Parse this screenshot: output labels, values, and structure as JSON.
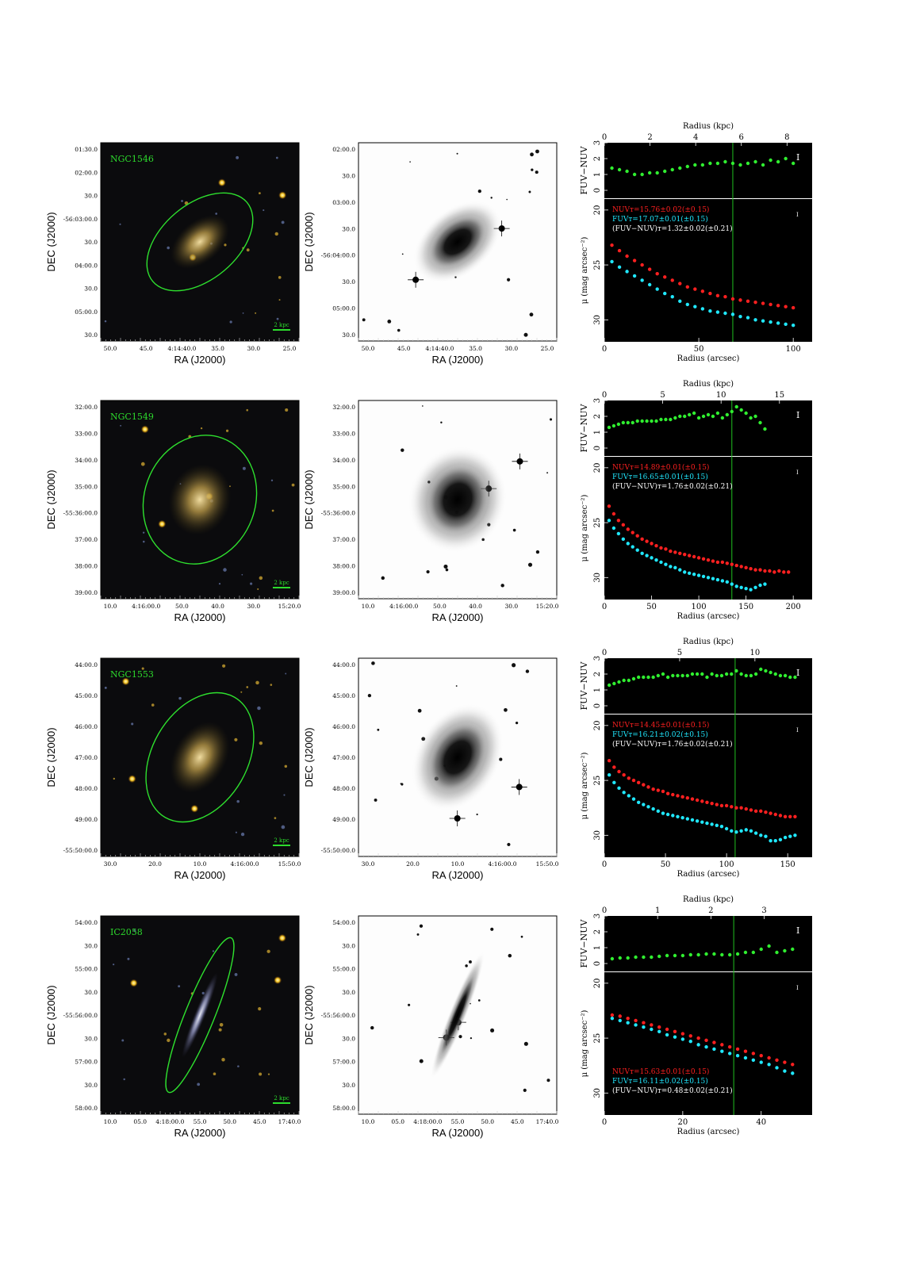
{
  "axis_text": {
    "ra_label": "RA (J2000)",
    "dec_label": "DEC (J2000)",
    "radius_kpc_label": "Radius (kpc)",
    "radius_arcsec_label": "Radius (arcsec)",
    "color_label": "FUV−NUV",
    "mu_label": "μ (mag arcsec⁻²)",
    "scalebar_label": "2 kpc"
  },
  "colors": {
    "nuv": "#ff2020",
    "fuv": "#20e8ff",
    "color": "#30ee30",
    "text_green": "#2ddc2d"
  },
  "rows": [
    {
      "name": "NGC1546",
      "ra_ticks": [
        "50.0",
        "45.0",
        "4:14:40.0",
        "35.0",
        "30.0",
        "25.0"
      ],
      "dec_ticks": [
        "01:30.0",
        "02:00.0",
        "30.0",
        "-56:03:00.0",
        "30.0",
        "04:00.0",
        "30.0",
        "05:00.0",
        "30.0"
      ],
      "gray_dec_ticks": [
        "02:00.0",
        "30.0",
        "03:00.0",
        "30.0",
        "-56:04:00.0",
        "30.0",
        "05:00.0",
        "30.0"
      ],
      "ellipse": {
        "major": 0.31,
        "minor": 0.19,
        "angle": 40
      },
      "legend": [
        "NUVᴛ=15.76±0.02(±0.15)",
        "FUVᴛ=17.07±0.01(±0.15)",
        "(FUV−NUV)ᴛ=1.32±0.02(±0.21)"
      ],
      "chart_data": {
        "type": "scatter",
        "x_arcsec_range": [
          0,
          110
        ],
        "x_arcsec_ticks": [
          0,
          50,
          100
        ],
        "kpc_ticks": [
          0,
          2,
          4,
          6,
          8
        ],
        "kpc_max": 9.1,
        "color_ylim": [
          -0.5,
          3
        ],
        "mu_ylim": [
          19,
          32
        ],
        "vline": 68,
        "nuv": {
          "x": [
            4,
            8,
            12,
            16,
            20,
            24,
            28,
            32,
            36,
            40,
            44,
            48,
            52,
            56,
            60,
            64,
            68,
            72,
            76,
            80,
            84,
            88,
            92,
            96,
            100
          ],
          "y": [
            23.2,
            23.7,
            24.2,
            24.6,
            25.0,
            25.4,
            25.8,
            26.1,
            26.4,
            26.7,
            27.0,
            27.2,
            27.4,
            27.6,
            27.8,
            27.9,
            28.1,
            28.2,
            28.3,
            28.4,
            28.5,
            28.6,
            28.7,
            28.8,
            28.9
          ]
        },
        "fuv": {
          "x": [
            4,
            8,
            12,
            16,
            20,
            24,
            28,
            32,
            36,
            40,
            44,
            48,
            52,
            56,
            60,
            64,
            68,
            72,
            76,
            80,
            84,
            88,
            92,
            96,
            100
          ],
          "y": [
            24.7,
            25.2,
            25.6,
            26.0,
            26.4,
            26.8,
            27.2,
            27.6,
            27.9,
            28.3,
            28.6,
            28.8,
            29.0,
            29.2,
            29.3,
            29.4,
            29.5,
            29.7,
            29.8,
            30.0,
            30.1,
            30.2,
            30.3,
            30.4,
            30.5
          ]
        },
        "fuv_nuv": {
          "x": [
            4,
            8,
            12,
            16,
            20,
            24,
            28,
            32,
            36,
            40,
            44,
            48,
            52,
            56,
            60,
            64,
            68,
            72,
            76,
            80,
            84,
            88,
            92,
            96,
            100
          ],
          "y": [
            1.4,
            1.3,
            1.2,
            1.0,
            1.0,
            1.1,
            1.1,
            1.2,
            1.3,
            1.4,
            1.5,
            1.6,
            1.6,
            1.7,
            1.7,
            1.8,
            1.7,
            1.6,
            1.7,
            1.8,
            1.6,
            1.9,
            1.8,
            2.0,
            1.7
          ]
        }
      }
    },
    {
      "name": "NGC1549",
      "ra_ticks": [
        "10.0",
        "4:16:00.0",
        "50.0",
        "40.0",
        "30.0",
        "15:20.0"
      ],
      "dec_ticks": [
        "32:00.0",
        "33:00.0",
        "34:00.0",
        "35:00.0",
        "-55:36:00.0",
        "37:00.0",
        "38:00.0",
        "39:00.0"
      ],
      "gray_dec_ticks": [
        "32:00.0",
        "33:00.0",
        "34:00.0",
        "35:00.0",
        "-55:36:00.0",
        "37:00.0",
        "38:00.0",
        "39:00.0"
      ],
      "ellipse": {
        "major": 0.33,
        "minor": 0.28,
        "angle": 70
      },
      "legend": [
        "NUVᴛ=14.89±0.01(±0.15)",
        "FUVᴛ=16.65±0.01(±0.15)",
        "(FUV−NUV)ᴛ=1.76±0.02(±0.21)"
      ],
      "chart_data": {
        "type": "scatter",
        "x_arcsec_range": [
          0,
          220
        ],
        "x_arcsec_ticks": [
          0,
          50,
          100,
          150,
          200
        ],
        "kpc_ticks": [
          0,
          5,
          10,
          15
        ],
        "kpc_max": 17.8,
        "color_ylim": [
          -0.5,
          3
        ],
        "mu_ylim": [
          19,
          32
        ],
        "vline": 135,
        "nuv": {
          "x": [
            5,
            10,
            15,
            20,
            25,
            30,
            35,
            40,
            45,
            50,
            55,
            60,
            65,
            70,
            75,
            80,
            85,
            90,
            95,
            100,
            105,
            110,
            115,
            120,
            125,
            130,
            135,
            140,
            145,
            150,
            155,
            160,
            165,
            170,
            175,
            180,
            185,
            190,
            195
          ],
          "y": [
            23.5,
            24.2,
            24.8,
            25.2,
            25.6,
            25.9,
            26.2,
            26.5,
            26.7,
            26.9,
            27.1,
            27.3,
            27.4,
            27.6,
            27.7,
            27.8,
            27.9,
            28.0,
            28.1,
            28.2,
            28.3,
            28.4,
            28.5,
            28.6,
            28.6,
            28.7,
            28.8,
            28.9,
            29.0,
            29.1,
            29.2,
            29.3,
            29.3,
            29.4,
            29.4,
            29.5,
            29.4,
            29.5,
            29.5
          ]
        },
        "fuv": {
          "x": [
            5,
            10,
            15,
            20,
            25,
            30,
            35,
            40,
            45,
            50,
            55,
            60,
            65,
            70,
            75,
            80,
            85,
            90,
            95,
            100,
            105,
            110,
            115,
            120,
            125,
            130,
            135,
            140,
            145,
            150,
            155,
            160,
            165,
            170
          ],
          "y": [
            24.8,
            25.5,
            26.0,
            26.5,
            26.9,
            27.2,
            27.5,
            27.8,
            28.0,
            28.2,
            28.4,
            28.6,
            28.8,
            29.0,
            29.1,
            29.3,
            29.5,
            29.6,
            29.7,
            29.8,
            29.9,
            30.0,
            30.1,
            30.2,
            30.3,
            30.4,
            30.6,
            30.8,
            30.9,
            31.0,
            31.1,
            30.9,
            30.7,
            30.6
          ]
        },
        "fuv_nuv": {
          "x": [
            5,
            10,
            15,
            20,
            25,
            30,
            35,
            40,
            45,
            50,
            55,
            60,
            65,
            70,
            75,
            80,
            85,
            90,
            95,
            100,
            105,
            110,
            115,
            120,
            125,
            130,
            135,
            140,
            145,
            150,
            155,
            160,
            165,
            170
          ],
          "y": [
            1.3,
            1.4,
            1.5,
            1.6,
            1.6,
            1.6,
            1.7,
            1.7,
            1.7,
            1.7,
            1.7,
            1.8,
            1.8,
            1.8,
            1.9,
            2.0,
            2.0,
            2.1,
            2.2,
            1.9,
            2.0,
            2.1,
            2.0,
            2.2,
            1.9,
            2.1,
            2.3,
            2.6,
            2.4,
            2.2,
            1.9,
            2.0,
            1.6,
            1.2
          ]
        }
      }
    },
    {
      "name": "NGC1553",
      "ra_ticks": [
        "30.0",
        "20.0",
        "10.0",
        "4:16:00.0",
        "15:50.0"
      ],
      "dec_ticks": [
        "44:00.0",
        "45:00.0",
        "46:00.0",
        "47:00.0",
        "48:00.0",
        "49:00.0",
        "-55:50:00.0"
      ],
      "gray_dec_ticks": [
        "44:00.0",
        "45:00.0",
        "46:00.0",
        "47:00.0",
        "48:00.0",
        "49:00.0",
        "-55:50:00.0"
      ],
      "ellipse": {
        "major": 0.35,
        "minor": 0.24,
        "angle": 60
      },
      "legend": [
        "NUVᴛ=14.45±0.01(±0.15)",
        "FUVᴛ=16.21±0.02(±0.15)",
        "(FUV−NUV)ᴛ=1.76±0.02(±0.21)"
      ],
      "chart_data": {
        "type": "scatter",
        "x_arcsec_range": [
          0,
          170
        ],
        "x_arcsec_ticks": [
          0,
          50,
          100,
          150
        ],
        "kpc_ticks": [
          0,
          5,
          10
        ],
        "kpc_max": 13.8,
        "color_ylim": [
          -0.5,
          3
        ],
        "mu_ylim": [
          19,
          32
        ],
        "vline": 107,
        "nuv": {
          "x": [
            4,
            8,
            12,
            16,
            20,
            24,
            28,
            32,
            36,
            40,
            44,
            48,
            52,
            56,
            60,
            64,
            68,
            72,
            76,
            80,
            84,
            88,
            92,
            96,
            100,
            104,
            108,
            112,
            116,
            120,
            124,
            128,
            132,
            136,
            140,
            144,
            148,
            152,
            156
          ],
          "y": [
            23.2,
            23.8,
            24.2,
            24.5,
            24.8,
            25.0,
            25.2,
            25.4,
            25.6,
            25.8,
            25.9,
            26.0,
            26.2,
            26.3,
            26.4,
            26.5,
            26.6,
            26.7,
            26.8,
            26.9,
            27.0,
            27.1,
            27.2,
            27.3,
            27.3,
            27.4,
            27.5,
            27.5,
            27.6,
            27.7,
            27.8,
            27.8,
            27.9,
            28.0,
            28.1,
            28.2,
            28.3,
            28.3,
            28.3
          ]
        },
        "fuv": {
          "x": [
            4,
            8,
            12,
            16,
            20,
            24,
            28,
            32,
            36,
            40,
            44,
            48,
            52,
            56,
            60,
            64,
            68,
            72,
            76,
            80,
            84,
            88,
            92,
            96,
            100,
            104,
            108,
            112,
            116,
            120,
            124,
            128,
            132,
            136,
            140,
            144,
            148,
            152,
            156
          ],
          "y": [
            24.5,
            25.2,
            25.7,
            26.1,
            26.4,
            26.7,
            27.0,
            27.2,
            27.4,
            27.6,
            27.8,
            28.0,
            28.1,
            28.2,
            28.3,
            28.4,
            28.5,
            28.6,
            28.7,
            28.8,
            28.9,
            29.0,
            29.1,
            29.2,
            29.4,
            29.6,
            29.7,
            29.6,
            29.5,
            29.6,
            29.8,
            30.0,
            30.1,
            30.5,
            30.5,
            30.4,
            30.2,
            30.1,
            30.0
          ]
        },
        "fuv_nuv": {
          "x": [
            4,
            8,
            12,
            16,
            20,
            24,
            28,
            32,
            36,
            40,
            44,
            48,
            52,
            56,
            60,
            64,
            68,
            72,
            76,
            80,
            84,
            88,
            92,
            96,
            100,
            104,
            108,
            112,
            116,
            120,
            124,
            128,
            132,
            136,
            140,
            144,
            148,
            152,
            156
          ],
          "y": [
            1.3,
            1.4,
            1.5,
            1.6,
            1.6,
            1.7,
            1.8,
            1.8,
            1.8,
            1.8,
            1.9,
            2.0,
            1.8,
            1.9,
            1.9,
            1.9,
            1.9,
            2.0,
            2.0,
            2.0,
            1.8,
            2.0,
            1.9,
            1.9,
            2.0,
            2.0,
            2.2,
            2.0,
            1.9,
            1.9,
            2.0,
            2.3,
            2.2,
            2.1,
            2.0,
            1.9,
            1.9,
            1.8,
            1.8
          ]
        }
      }
    },
    {
      "name": "IC2058",
      "ra_ticks": [
        "10.0",
        "05.0",
        "4:18:00.0",
        "55.0",
        "50.0",
        "45.0",
        "17:40.0"
      ],
      "dec_ticks": [
        "54:00.0",
        "30.0",
        "55:00.0",
        "30.0",
        "-55:56:00.0",
        "30.0",
        "57:00.0",
        "30.0",
        "58:00.0"
      ],
      "gray_dec_ticks": [
        "54:00.0",
        "30.0",
        "55:00.0",
        "30.0",
        "-55:56:00.0",
        "30.0",
        "57:00.0",
        "30.0",
        "58:00.0"
      ],
      "ellipse": {
        "major": 0.42,
        "minor": 0.05,
        "angle": 68
      },
      "legend": [
        "NUVᴛ=15.63±0.01(±0.15)",
        "FUVᴛ=16.11±0.02(±0.15)",
        "(FUV−NUV)ᴛ=0.48±0.02(±0.21)"
      ],
      "chart_data": {
        "type": "scatter",
        "x_arcsec_range": [
          0,
          53
        ],
        "x_arcsec_ticks": [
          0,
          20,
          40
        ],
        "kpc_ticks": [
          0,
          1,
          2,
          3
        ],
        "kpc_max": 3.9,
        "color_ylim": [
          -0.5,
          3
        ],
        "mu_ylim": [
          19,
          32
        ],
        "vline": 33,
        "nuv": {
          "x": [
            2,
            4,
            6,
            8,
            10,
            12,
            14,
            16,
            18,
            20,
            22,
            24,
            26,
            28,
            30,
            32,
            34,
            36,
            38,
            40,
            42,
            44,
            46,
            48
          ],
          "y": [
            22.9,
            23.0,
            23.2,
            23.4,
            23.6,
            23.8,
            24.0,
            24.2,
            24.4,
            24.6,
            24.8,
            25.0,
            25.2,
            25.4,
            25.6,
            25.8,
            26.0,
            26.2,
            26.4,
            26.6,
            26.8,
            27.0,
            27.2,
            27.4
          ]
        },
        "fuv": {
          "x": [
            2,
            4,
            6,
            8,
            10,
            12,
            14,
            16,
            18,
            20,
            22,
            24,
            26,
            28,
            30,
            32,
            34,
            36,
            38,
            40,
            42,
            44,
            46,
            48
          ],
          "y": [
            23.2,
            23.4,
            23.6,
            23.8,
            24.0,
            24.2,
            24.4,
            24.7,
            24.9,
            25.1,
            25.3,
            25.6,
            25.8,
            26.0,
            26.2,
            26.4,
            26.6,
            26.8,
            27.0,
            27.2,
            27.4,
            27.7,
            28.0,
            28.2
          ]
        },
        "fuv_nuv": {
          "x": [
            2,
            4,
            6,
            8,
            10,
            12,
            14,
            16,
            18,
            20,
            22,
            24,
            26,
            28,
            30,
            32,
            34,
            36,
            38,
            40,
            42,
            44,
            46,
            48
          ],
          "y": [
            0.3,
            0.35,
            0.35,
            0.4,
            0.4,
            0.4,
            0.45,
            0.5,
            0.5,
            0.5,
            0.55,
            0.55,
            0.6,
            0.6,
            0.55,
            0.55,
            0.6,
            0.7,
            0.7,
            0.9,
            1.1,
            0.7,
            0.8,
            0.9
          ]
        }
      }
    }
  ]
}
